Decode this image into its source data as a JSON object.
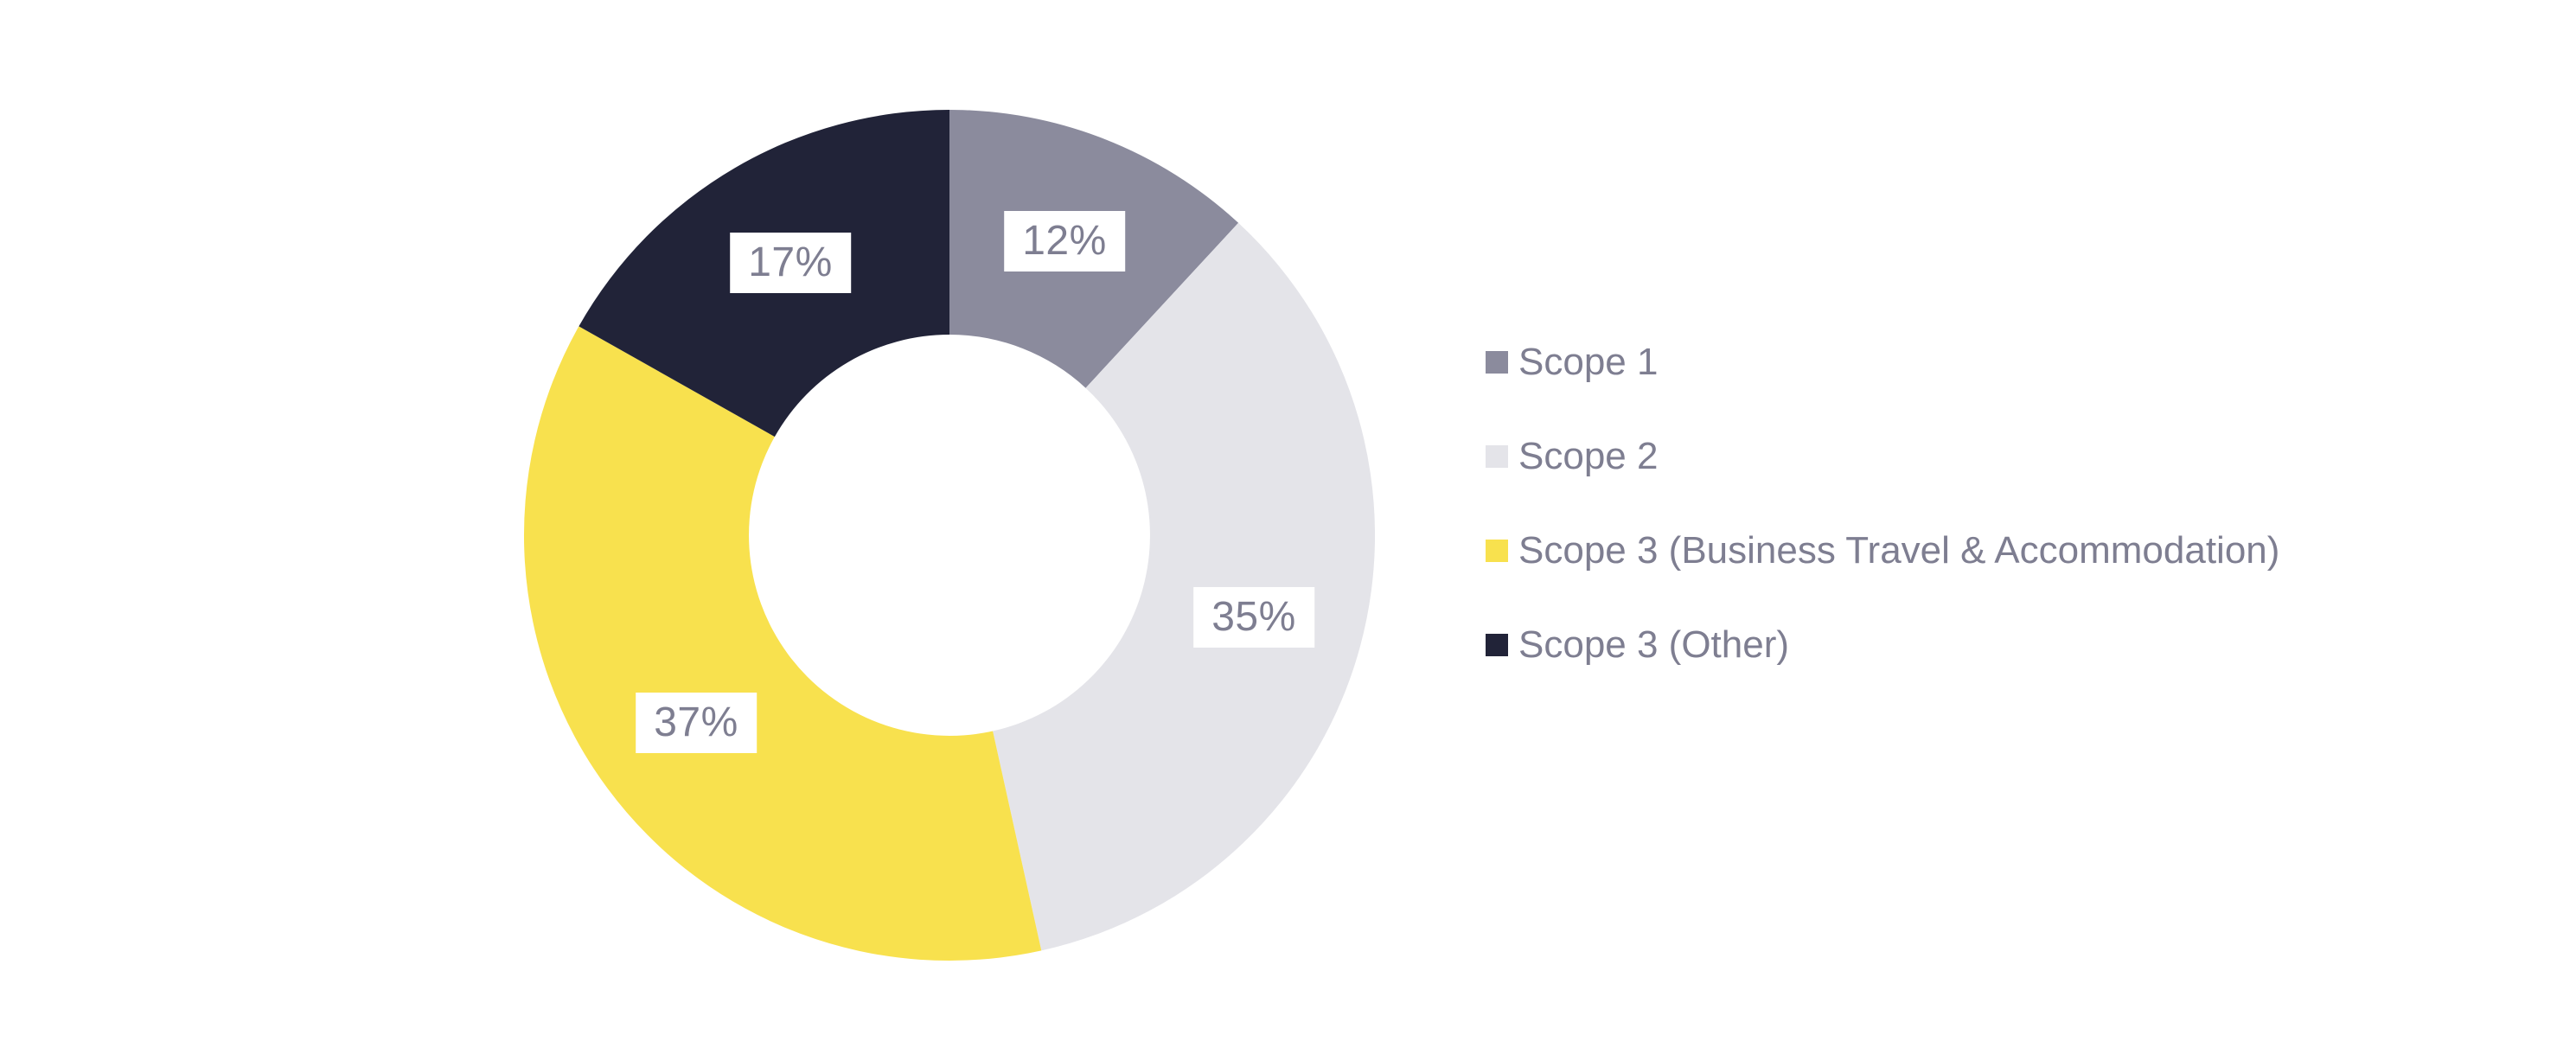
{
  "background_color": "#ffffff",
  "text_color": "#7E7E91",
  "chart_data": {
    "type": "pie",
    "subtype": "donut",
    "categories": [
      "Scope 1",
      "Scope 2",
      "Scope 3 (Business Travel & Accommodation)",
      "Scope 3 (Other)"
    ],
    "values": [
      12,
      35,
      37,
      17
    ],
    "unit": "%",
    "labels": [
      "12%",
      "35%",
      "37%",
      "17%"
    ],
    "colors": [
      "#8B8B9D",
      "#E4E4E9",
      "#F8E14E",
      "#212338"
    ],
    "start_angle_deg": 0,
    "direction": "clockwise",
    "inner_radius_ratio": 0.47,
    "label_bg_color": "#ffffff",
    "label_text_color": "#7E7E91",
    "legend_position": "right",
    "title": ""
  },
  "legend": {
    "items": [
      {
        "label": "Scope 1",
        "color": "#8B8B9D"
      },
      {
        "label": "Scope 2",
        "color": "#E4E4E9"
      },
      {
        "label": "Scope 3 (Business Travel & Accommodation)",
        "color": "#F8E14E"
      },
      {
        "label": "Scope 3 (Other)",
        "color": "#212338"
      }
    ],
    "text_color": "#7E7E91"
  }
}
